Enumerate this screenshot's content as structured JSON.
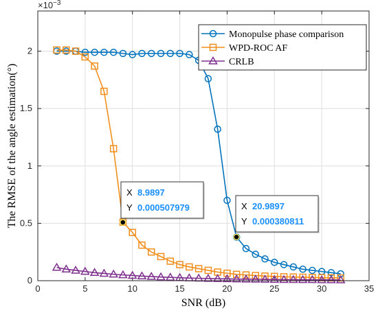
{
  "chart_data": {
    "type": "line",
    "xlabel": "SNR (dB)",
    "ylabel": "The RMSE of the angle estimation(°)",
    "exponent_label": "×10",
    "exponent_power": "−3",
    "xlim": [
      0,
      35
    ],
    "ylim": [
      0,
      2.35
    ],
    "y_scale_note": "values in units of 10^-3",
    "xticks": [
      0,
      5,
      10,
      15,
      20,
      25,
      30,
      35
    ],
    "yticks": [
      0,
      0.5,
      1,
      1.5,
      2
    ],
    "ytick_labels": [
      "0",
      "0.5",
      "1",
      "1.5",
      "2"
    ],
    "grid": true,
    "legend_position": "top-right",
    "x": [
      2,
      3,
      4,
      5,
      6,
      7,
      8,
      9,
      10,
      11,
      12,
      13,
      14,
      15,
      16,
      17,
      18,
      19,
      20,
      21,
      22,
      23,
      24,
      25,
      26,
      27,
      28,
      29,
      30,
      31,
      32
    ],
    "series": [
      {
        "name": "Monopulse phase comparison",
        "color": "#0072BD",
        "marker": "circle",
        "values": [
          2.0,
          2.0,
          2.0,
          1.99,
          1.99,
          1.99,
          1.99,
          1.98,
          1.97,
          1.98,
          1.98,
          1.98,
          1.98,
          1.98,
          1.97,
          1.92,
          1.76,
          1.32,
          0.7,
          0.38,
          0.28,
          0.23,
          0.19,
          0.16,
          0.14,
          0.12,
          0.1,
          0.09,
          0.08,
          0.07,
          0.06
        ]
      },
      {
        "name": "WPD-ROC AF",
        "color": "#F28E1C",
        "marker": "square",
        "values": [
          2.01,
          2.01,
          2.0,
          1.95,
          1.87,
          1.65,
          1.15,
          0.51,
          0.42,
          0.31,
          0.25,
          0.21,
          0.17,
          0.14,
          0.12,
          0.105,
          0.09,
          0.075,
          0.065,
          0.055,
          0.05,
          0.045,
          0.04,
          0.037,
          0.034,
          0.032,
          0.03,
          0.028,
          0.026,
          0.025,
          0.024
        ]
      },
      {
        "name": "CRLB",
        "color": "#7E2F8E",
        "marker": "triangle",
        "values": [
          0.115,
          0.1,
          0.09,
          0.08,
          0.07,
          0.063,
          0.056,
          0.05,
          0.045,
          0.04,
          0.036,
          0.032,
          0.029,
          0.026,
          0.023,
          0.021,
          0.019,
          0.017,
          0.016,
          0.014,
          0.013,
          0.012,
          0.011,
          0.01,
          0.009,
          0.009,
          0.008,
          0.008,
          0.007,
          0.007,
          0.006
        ]
      }
    ],
    "datatips": [
      {
        "x": 8.9897,
        "y": 0.507979,
        "x_text": "8.9897",
        "y_text": "0.000507979",
        "x_key": "X",
        "y_key": "Y"
      },
      {
        "x": 20.9897,
        "y": 0.380811,
        "x_text": "20.9897",
        "y_text": "0.000380811",
        "x_key": "X",
        "y_key": "Y"
      }
    ]
  }
}
